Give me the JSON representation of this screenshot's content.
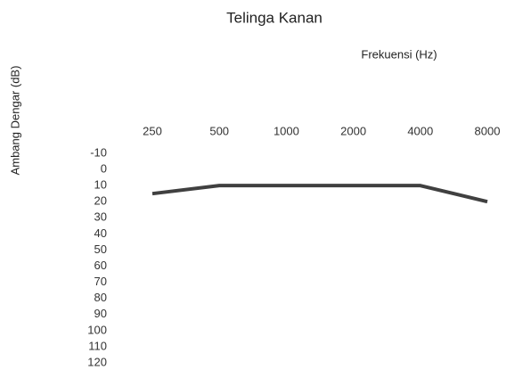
{
  "chart_data": {
    "type": "line",
    "title": "Telinga Kanan",
    "x_label": "Frekuensi (Hz)",
    "y_label": "Ambang Dengar (dB)",
    "categories": [
      "250",
      "500",
      "1000",
      "2000",
      "4000",
      "8000"
    ],
    "series": [
      {
        "name": "Telinga Kanan",
        "color": "#404040",
        "values": [
          15,
          10,
          10,
          10,
          10,
          20
        ]
      }
    ],
    "ylim": [
      -10,
      120
    ],
    "y_inverted": true,
    "yticks": [
      -10,
      0,
      10,
      20,
      30,
      40,
      50,
      60,
      70,
      80,
      90,
      100,
      110,
      120
    ],
    "grid": false
  }
}
